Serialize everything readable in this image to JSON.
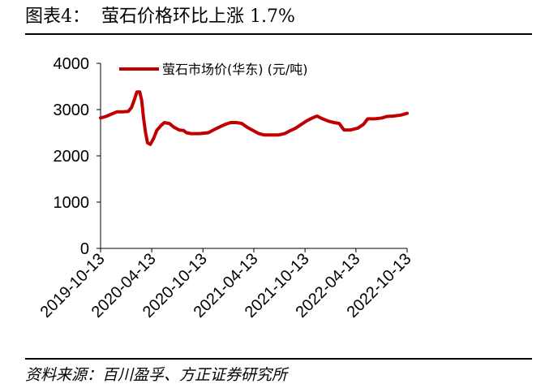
{
  "figure": {
    "title": "图表4：  萤石价格环比上涨 1.7%",
    "source": "资料来源：百川盈孚、方正证券研究所"
  },
  "chart_data": {
    "type": "line",
    "legend_position": "top-left",
    "grid": false,
    "ylim": [
      0,
      4000
    ],
    "yticks": [
      0,
      1000,
      2000,
      3000,
      4000
    ],
    "xlim": [
      "2019-10-13",
      "2022-10-13"
    ],
    "xticks": [
      "2019-10-13",
      "2020-04-13",
      "2020-10-13",
      "2021-04-13",
      "2021-10-13",
      "2022-04-13",
      "2022-10-13"
    ],
    "colors": {
      "series": "#c00000",
      "axis": "#000000"
    },
    "series": [
      {
        "name": "萤石市场价(华东)  (元/吨)",
        "points": [
          [
            "2019-10-13",
            2820
          ],
          [
            "2019-11-01",
            2850
          ],
          [
            "2019-11-20",
            2900
          ],
          [
            "2019-12-10",
            2950
          ],
          [
            "2020-01-01",
            2950
          ],
          [
            "2020-01-20",
            2960
          ],
          [
            "2020-02-01",
            3050
          ],
          [
            "2020-02-10",
            3200
          ],
          [
            "2020-02-20",
            3380
          ],
          [
            "2020-03-01",
            3380
          ],
          [
            "2020-03-08",
            3200
          ],
          [
            "2020-03-15",
            2800
          ],
          [
            "2020-03-22",
            2500
          ],
          [
            "2020-03-29",
            2280
          ],
          [
            "2020-04-08",
            2250
          ],
          [
            "2020-04-20",
            2380
          ],
          [
            "2020-05-01",
            2550
          ],
          [
            "2020-05-15",
            2650
          ],
          [
            "2020-05-28",
            2720
          ],
          [
            "2020-06-15",
            2700
          ],
          [
            "2020-07-01",
            2620
          ],
          [
            "2020-07-20",
            2560
          ],
          [
            "2020-08-05",
            2550
          ],
          [
            "2020-08-15",
            2500
          ],
          [
            "2020-09-01",
            2480
          ],
          [
            "2020-10-01",
            2480
          ],
          [
            "2020-11-01",
            2500
          ],
          [
            "2020-11-20",
            2560
          ],
          [
            "2020-12-10",
            2620
          ],
          [
            "2021-01-01",
            2680
          ],
          [
            "2021-01-20",
            2720
          ],
          [
            "2021-02-10",
            2720
          ],
          [
            "2021-03-01",
            2700
          ],
          [
            "2021-03-20",
            2620
          ],
          [
            "2021-04-10",
            2550
          ],
          [
            "2021-05-01",
            2480
          ],
          [
            "2021-05-20",
            2450
          ],
          [
            "2021-06-15",
            2450
          ],
          [
            "2021-07-10",
            2450
          ],
          [
            "2021-08-01",
            2480
          ],
          [
            "2021-08-20",
            2540
          ],
          [
            "2021-09-10",
            2600
          ],
          [
            "2021-09-30",
            2680
          ],
          [
            "2021-10-20",
            2760
          ],
          [
            "2021-11-08",
            2820
          ],
          [
            "2021-11-25",
            2860
          ],
          [
            "2021-12-15",
            2800
          ],
          [
            "2022-01-05",
            2750
          ],
          [
            "2022-01-25",
            2720
          ],
          [
            "2022-02-12",
            2700
          ],
          [
            "2022-02-22",
            2620
          ],
          [
            "2022-03-01",
            2560
          ],
          [
            "2022-03-25",
            2560
          ],
          [
            "2022-04-20",
            2600
          ],
          [
            "2022-05-10",
            2680
          ],
          [
            "2022-05-25",
            2800
          ],
          [
            "2022-06-20",
            2800
          ],
          [
            "2022-07-15",
            2820
          ],
          [
            "2022-08-01",
            2850
          ],
          [
            "2022-08-25",
            2860
          ],
          [
            "2022-09-20",
            2880
          ],
          [
            "2022-10-13",
            2920
          ]
        ]
      }
    ]
  }
}
